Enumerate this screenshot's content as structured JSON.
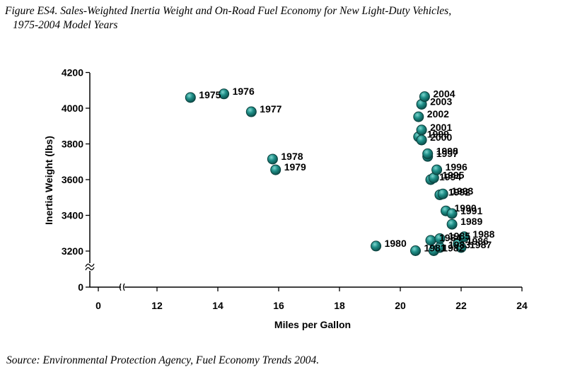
{
  "figure": {
    "title_line1": "Figure ES4. Sales-Weighted Inertia Weight and On-Road Fuel Economy for New Light-Duty Vehicles,",
    "title_line2": "1975-2004 Model Years",
    "source": "Source: Environmental Protection Agency, Fuel Economy Trends 2004."
  },
  "chart_data": {
    "type": "scatter",
    "title": "Figure ES4. Sales-Weighted Inertia Weight and On-Road Fuel Economy for New Light-Duty Vehicles, 1975-2004 Model Years",
    "xlabel": "Miles per Gallon",
    "ylabel": "Inertia Weight (lbs)",
    "xlim": [
      10,
      24
    ],
    "ylim": [
      3100,
      4200
    ],
    "axis_break": {
      "x_from": 0,
      "x_to": 10,
      "y_from": 0,
      "y_to": 3100
    },
    "x_ticks": [
      "0",
      "12",
      "14",
      "16",
      "18",
      "20",
      "22",
      "24"
    ],
    "x_tick_values": [
      0,
      12,
      14,
      16,
      18,
      20,
      22,
      24
    ],
    "y_ticks": [
      "0",
      "3200",
      "3400",
      "3600",
      "3800",
      "4000",
      "4200"
    ],
    "y_tick_values": [
      0,
      3200,
      3400,
      3600,
      3800,
      4000,
      4200
    ],
    "grid": false,
    "marker_color": "#1a7f7a",
    "points": [
      {
        "label": "1975",
        "x": 13.1,
        "y": 4060
      },
      {
        "label": "1976",
        "x": 14.2,
        "y": 4080
      },
      {
        "label": "1977",
        "x": 15.1,
        "y": 3980
      },
      {
        "label": "1978",
        "x": 15.8,
        "y": 3715
      },
      {
        "label": "1979",
        "x": 15.9,
        "y": 3655
      },
      {
        "label": "1980",
        "x": 19.2,
        "y": 3228
      },
      {
        "label": "1981",
        "x": 20.5,
        "y": 3202
      },
      {
        "label": "1982",
        "x": 21.1,
        "y": 3202
      },
      {
        "label": "1983",
        "x": 21.3,
        "y": 3220
      },
      {
        "label": "1984",
        "x": 21.0,
        "y": 3260
      },
      {
        "label": "1985",
        "x": 21.3,
        "y": 3270
      },
      {
        "label": "1986",
        "x": 21.9,
        "y": 3240
      },
      {
        "label": "1987",
        "x": 22.0,
        "y": 3220
      },
      {
        "label": "1988",
        "x": 22.1,
        "y": 3280
      },
      {
        "label": "1989",
        "x": 21.7,
        "y": 3350
      },
      {
        "label": "1990",
        "x": 21.5,
        "y": 3425
      },
      {
        "label": "1991",
        "x": 21.7,
        "y": 3410
      },
      {
        "label": "1992",
        "x": 21.3,
        "y": 3515
      },
      {
        "label": "1993",
        "x": 21.4,
        "y": 3520
      },
      {
        "label": "1994",
        "x": 21.0,
        "y": 3600
      },
      {
        "label": "1995",
        "x": 21.1,
        "y": 3610
      },
      {
        "label": "1996",
        "x": 21.2,
        "y": 3655
      },
      {
        "label": "1997",
        "x": 20.9,
        "y": 3730
      },
      {
        "label": "1998",
        "x": 20.9,
        "y": 3745
      },
      {
        "label": "1999",
        "x": 20.6,
        "y": 3840
      },
      {
        "label": "2000",
        "x": 20.7,
        "y": 3822
      },
      {
        "label": "2001",
        "x": 20.7,
        "y": 3878
      },
      {
        "label": "2002",
        "x": 20.6,
        "y": 3952
      },
      {
        "label": "2003",
        "x": 20.7,
        "y": 4022
      },
      {
        "label": "2004",
        "x": 20.8,
        "y": 4065
      }
    ]
  }
}
